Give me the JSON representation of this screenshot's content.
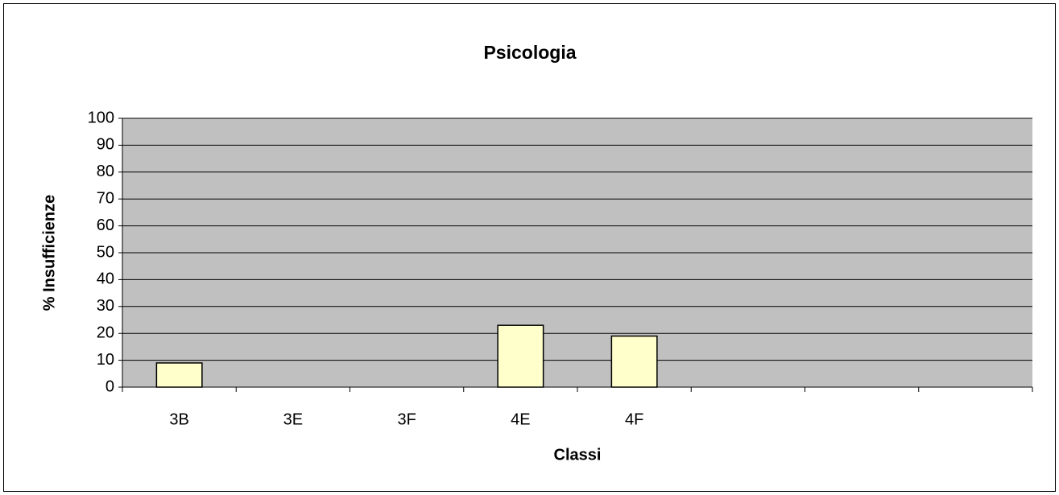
{
  "chart_data": {
    "type": "bar",
    "title": "Psicologia",
    "x_label": "Classi",
    "y_label": "% Insufficienze",
    "categories": [
      "3B",
      "3E",
      "3F",
      "4E",
      "4F",
      null,
      null,
      null
    ],
    "values": [
      9,
      0,
      0,
      23,
      19,
      null,
      null,
      null
    ],
    "color": "#ffffcc",
    "plot_background": "#c0c0c0",
    "ylim": [
      0,
      100
    ],
    "yticks": [
      0,
      10,
      20,
      30,
      40,
      50,
      60,
      70,
      80,
      90,
      100
    ],
    "grid": true
  }
}
